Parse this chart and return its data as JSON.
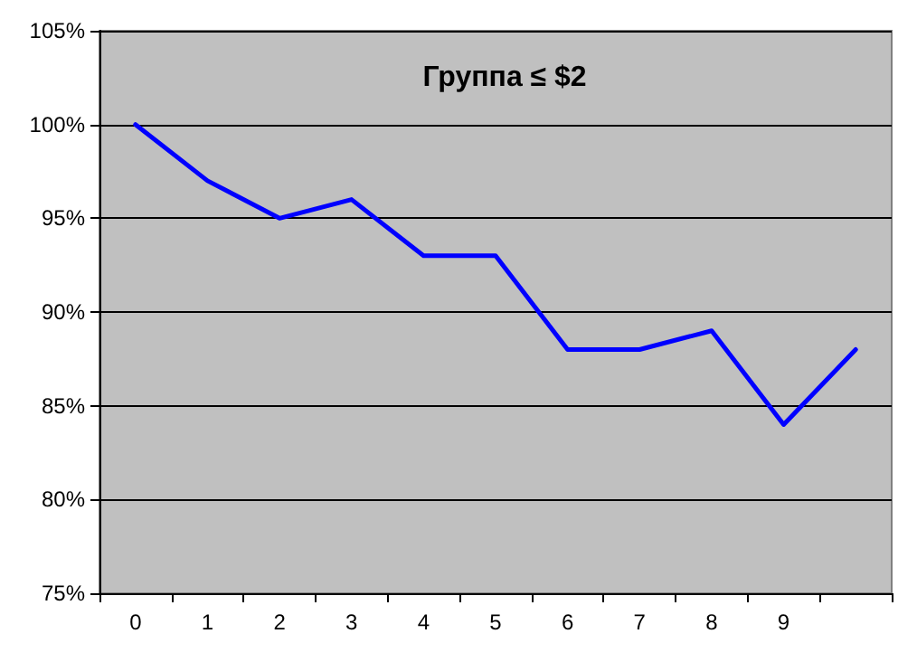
{
  "chart_data": {
    "type": "line",
    "title": "Группа ≤ $2",
    "categories": [
      "0",
      "1",
      "2",
      "3",
      "4",
      "5",
      "6",
      "7",
      "8",
      "9",
      null
    ],
    "series": [
      {
        "color": "#0000ff",
        "values": [
          100,
          97,
          95,
          96,
          93,
          93,
          88,
          88,
          89,
          84,
          88
        ]
      }
    ],
    "ylim": [
      75,
      105
    ],
    "yticks": [
      {
        "value": 75,
        "label": "75%"
      },
      {
        "value": 80,
        "label": "80%"
      },
      {
        "value": 85,
        "label": "85%"
      },
      {
        "value": 90,
        "label": "90%"
      },
      {
        "value": 95,
        "label": "95%"
      },
      {
        "value": 100,
        "label": "100%"
      },
      {
        "value": 105,
        "label": "105%"
      }
    ],
    "grid": "y",
    "marker": "none",
    "line_style": "solid"
  }
}
